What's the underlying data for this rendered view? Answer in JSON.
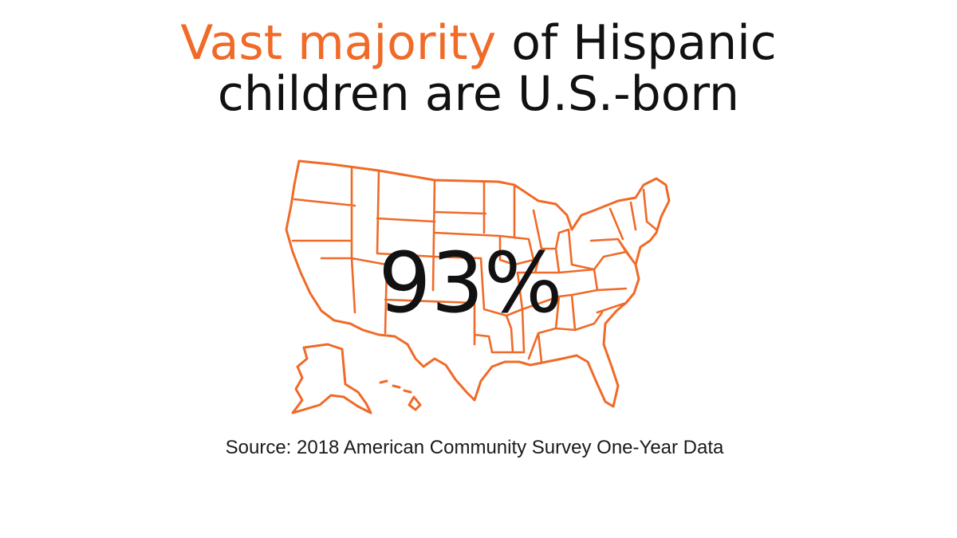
{
  "headline": {
    "accent_text": "Vast majority",
    "rest_line1": " of Hispanic",
    "line2": "children are U.S.-born"
  },
  "stat": {
    "value": "93%"
  },
  "source": {
    "text": "Source: 2018 American Community Survey One-Year Data"
  },
  "map": {
    "icon": "us-map-outline-icon",
    "stroke_color": "#f06a28"
  },
  "colors": {
    "accent": "#f06a28",
    "text": "#111111",
    "background": "#ffffff"
  }
}
